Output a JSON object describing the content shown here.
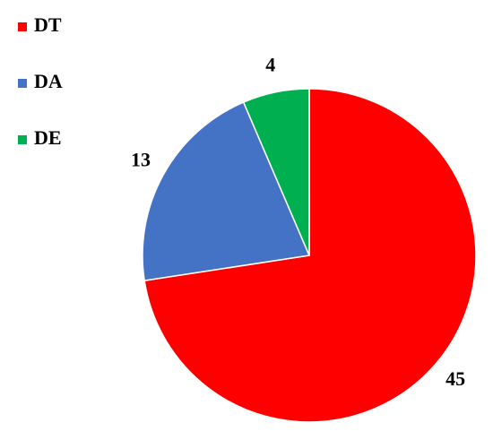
{
  "chart_data": {
    "type": "pie",
    "categories": [
      "DT",
      "DA",
      "DE"
    ],
    "values": [
      45,
      13,
      4
    ],
    "colors": [
      "#ff0000",
      "#4472c4",
      "#00b050"
    ],
    "legend": "top-left"
  }
}
